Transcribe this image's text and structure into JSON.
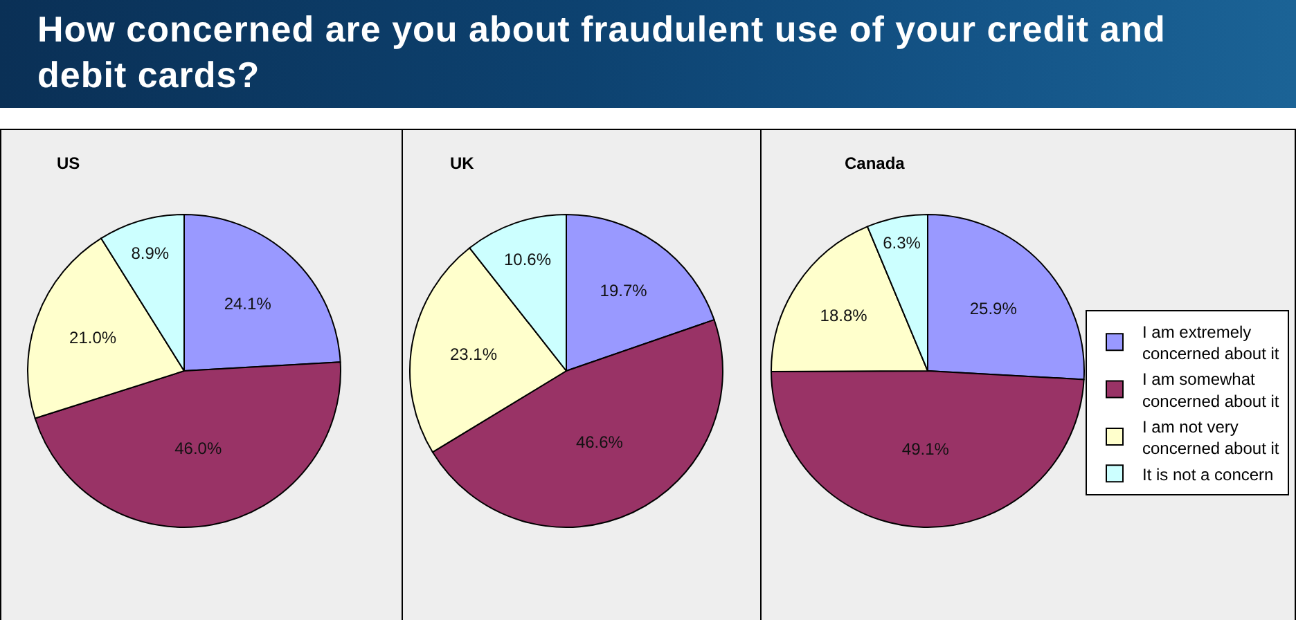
{
  "chart_data": [
    {
      "type": "pie",
      "title": "US",
      "annotations": [
        "How concerned are you about fraudulent use of your credit and debit cards?"
      ],
      "categories": [
        null,
        null,
        null,
        null
      ],
      "values": [
        24.1,
        46.0,
        21.0,
        8.9
      ],
      "value_labels": [
        "24.1%",
        "46.0%",
        "21.0%",
        "8.9%"
      ],
      "colors": [
        "#9999ff",
        "#993366",
        "#ffffcc",
        "#ccffff"
      ]
    },
    {
      "type": "pie",
      "title": "UK",
      "categories": [
        null,
        null,
        null,
        null
      ],
      "values": [
        19.7,
        46.6,
        23.1,
        10.6
      ],
      "value_labels": [
        "19.7%",
        "46.6%",
        "23.1%",
        "10.6%"
      ],
      "colors": [
        "#9999ff",
        "#993366",
        "#ffffcc",
        "#ccffff"
      ]
    },
    {
      "type": "pie",
      "title": "Canada",
      "categories": [
        "I am extremely concerned about it",
        "I am somewhat concerned about it",
        "I am not very concerned about it",
        "It is not a concern"
      ],
      "values": [
        25.9,
        49.1,
        18.8,
        6.3
      ],
      "value_labels": [
        "25.9%",
        "49.1%",
        "18.8%",
        "6.3%"
      ],
      "colors": [
        "#9999ff",
        "#993366",
        "#ffffcc",
        "#ccffff"
      ],
      "legend": "right"
    }
  ]
}
